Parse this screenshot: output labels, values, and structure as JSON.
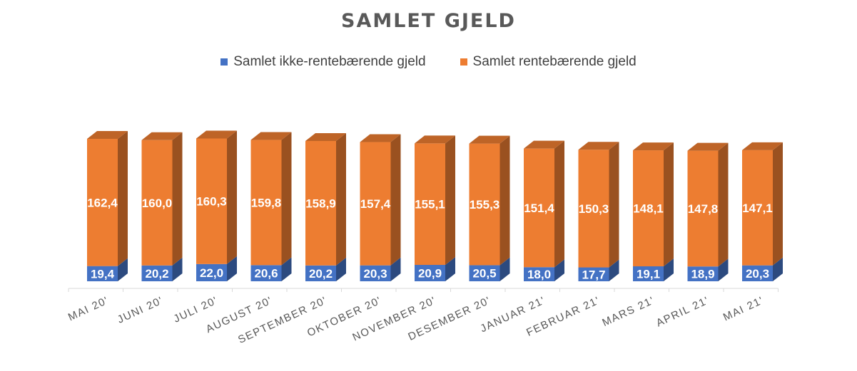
{
  "chart_data": {
    "type": "bar",
    "stacked": true,
    "three_d": true,
    "title": "SAMLET GJELD",
    "legend_position": "top",
    "categories": [
      "MAI 20'",
      "JUNI 20'",
      "JULI 20'",
      "AUGUST 20'",
      "SEPTEMBER 20'",
      "OKTOBER 20'",
      "NOVEMBER 20'",
      "DESEMBER 20'",
      "JANUAR 21'",
      "FEBRUAR 21'",
      "MARS 21'",
      "APRIL 21'",
      "MAI 21'"
    ],
    "series": [
      {
        "name": "Samlet ikke-rentebærende gjeld",
        "color": "#4472C4",
        "values": [
          19.4,
          20.2,
          22.0,
          20.6,
          20.2,
          20.3,
          20.9,
          20.5,
          18.0,
          17.7,
          19.1,
          18.9,
          20.3
        ],
        "labels": [
          "19,4",
          "20,2",
          "22,0",
          "20,6",
          "20,2",
          "20,3",
          "20,9",
          "20,5",
          "18,0",
          "17,7",
          "19,1",
          "18,9",
          "20,3"
        ]
      },
      {
        "name": "Samlet rentebærende gjeld",
        "color": "#ED7D31",
        "values": [
          162.4,
          160.0,
          160.3,
          159.8,
          158.9,
          157.4,
          155.1,
          155.3,
          151.4,
          150.3,
          148.1,
          147.8,
          147.1
        ],
        "labels": [
          "162,4",
          "160,0",
          "160,3",
          "159,8",
          "158,9",
          "157,4",
          "155,1",
          "155,3",
          "151,4",
          "150,3",
          "148,1",
          "147,8",
          "147,1"
        ]
      }
    ],
    "grid": false
  }
}
